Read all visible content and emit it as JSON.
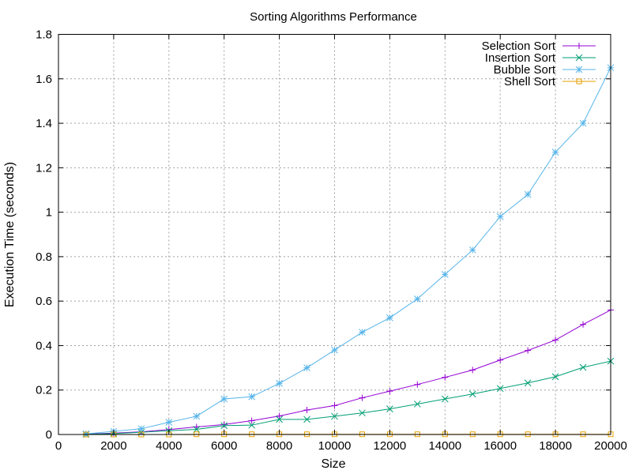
{
  "chart_data": {
    "type": "line",
    "title": "Sorting Algorithms Performance",
    "xlabel": "Size",
    "ylabel": "Execution Time (seconds)",
    "xlim": [
      0,
      20000
    ],
    "ylim": [
      0,
      1.8
    ],
    "xticks": [
      0,
      2000,
      4000,
      6000,
      8000,
      10000,
      12000,
      14000,
      16000,
      18000,
      20000
    ],
    "yticks": [
      0,
      0.2,
      0.4,
      0.6,
      0.8,
      1,
      1.2,
      1.4,
      1.6,
      1.8
    ],
    "xtick_labels": [
      "0",
      "2000",
      "4000",
      "6000",
      "8000",
      "10000",
      "12000",
      "14000",
      "16000",
      "18000",
      "20000"
    ],
    "ytick_labels": [
      "0",
      "0.2",
      "0.4",
      "0.6",
      "0.8",
      "1",
      "1.2",
      "1.4",
      "1.6",
      "1.8"
    ],
    "grid": true,
    "legend_position": "top-right",
    "x": [
      1000,
      2000,
      3000,
      4000,
      5000,
      6000,
      7000,
      8000,
      9000,
      10000,
      11000,
      12000,
      13000,
      14000,
      15000,
      16000,
      17000,
      18000,
      19000,
      20000
    ],
    "series": [
      {
        "name": "Selection Sort",
        "color": "#9400d3",
        "marker": "plus",
        "values": [
          0.002,
          0.006,
          0.012,
          0.022,
          0.034,
          0.045,
          0.062,
          0.083,
          0.11,
          0.13,
          0.165,
          0.195,
          0.225,
          0.257,
          0.29,
          0.335,
          0.378,
          0.425,
          0.495,
          0.56
        ]
      },
      {
        "name": "Insertion Sort",
        "color": "#009e73",
        "marker": "cross",
        "values": [
          0.001,
          0.004,
          0.01,
          0.017,
          0.023,
          0.04,
          0.042,
          0.068,
          0.068,
          0.082,
          0.097,
          0.115,
          0.137,
          0.16,
          0.182,
          0.207,
          0.232,
          0.26,
          0.302,
          0.33
        ]
      },
      {
        "name": "Bubble Sort",
        "color": "#56b4e9",
        "marker": "asterisk",
        "values": [
          0.003,
          0.014,
          0.026,
          0.055,
          0.082,
          0.16,
          0.17,
          0.23,
          0.3,
          0.38,
          0.46,
          0.525,
          0.61,
          0.72,
          0.83,
          0.98,
          1.08,
          1.27,
          1.4,
          1.65
        ]
      },
      {
        "name": "Shell Sort",
        "color": "#e69f00",
        "marker": "square",
        "values": [
          0.0,
          0.0,
          0.0,
          0.0,
          0.001,
          0.001,
          0.001,
          0.001,
          0.001,
          0.001,
          0.001,
          0.001,
          0.001,
          0.001,
          0.001,
          0.001,
          0.001,
          0.001,
          0.001,
          0.001
        ]
      }
    ]
  }
}
